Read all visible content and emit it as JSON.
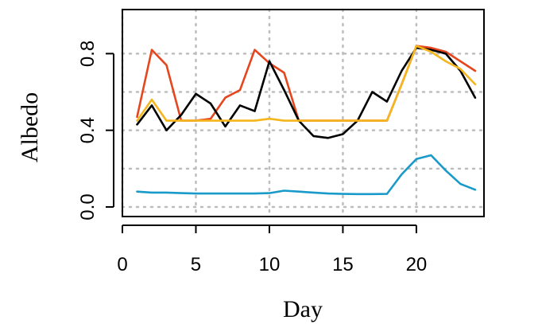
{
  "chart_data": {
    "type": "line",
    "title": "",
    "xlabel": "Day",
    "ylabel": "Albedo",
    "xlim": [
      0,
      24.6
    ],
    "ylim": [
      -0.05,
      1.03
    ],
    "x_ticks": [
      0,
      5,
      10,
      15,
      20
    ],
    "x_tick_labels": [
      "0",
      "5",
      "10",
      "15",
      "20"
    ],
    "y_ticks": [
      0.0,
      0.4,
      0.8
    ],
    "y_tick_labels": [
      "0.0",
      "0.4",
      "0.8"
    ],
    "grid": true,
    "x": [
      1,
      2,
      3,
      4,
      5,
      6,
      7,
      8,
      9,
      10,
      11,
      12,
      13,
      14,
      15,
      16,
      17,
      18,
      19,
      20,
      21,
      22,
      23,
      24
    ],
    "series": [
      {
        "color": "#e6461e",
        "values": [
          0.47,
          0.82,
          0.74,
          0.45,
          0.45,
          0.46,
          0.57,
          0.61,
          0.82,
          0.75,
          0.7,
          0.45,
          0.45,
          0.45,
          0.45,
          0.45,
          0.45,
          0.45,
          0.64,
          0.84,
          0.83,
          0.81,
          0.76,
          0.71
        ]
      },
      {
        "color": "#000000",
        "values": [
          0.43,
          0.53,
          0.4,
          0.48,
          0.59,
          0.54,
          0.42,
          0.53,
          0.5,
          0.76,
          0.61,
          0.45,
          0.37,
          0.36,
          0.38,
          0.45,
          0.6,
          0.55,
          0.71,
          0.83,
          0.82,
          0.8,
          0.71,
          0.57
        ]
      },
      {
        "color": "#f5b51c",
        "values": [
          0.45,
          0.56,
          0.45,
          0.45,
          0.45,
          0.45,
          0.45,
          0.45,
          0.45,
          0.46,
          0.45,
          0.45,
          0.45,
          0.45,
          0.45,
          0.45,
          0.45,
          0.45,
          0.64,
          0.84,
          0.81,
          0.76,
          0.72,
          0.64
        ]
      },
      {
        "color": "#1a9ac9",
        "values": [
          0.08,
          0.075,
          0.075,
          0.072,
          0.07,
          0.07,
          0.07,
          0.07,
          0.07,
          0.072,
          0.085,
          0.08,
          0.075,
          0.07,
          0.068,
          0.067,
          0.067,
          0.068,
          0.17,
          0.25,
          0.27,
          0.19,
          0.12,
          0.09
        ]
      }
    ]
  }
}
